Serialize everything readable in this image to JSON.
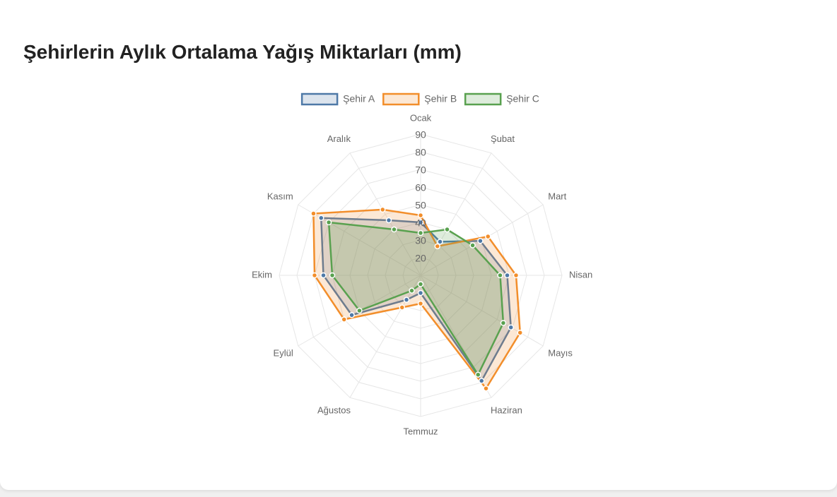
{
  "chart_data": {
    "type": "radar",
    "title": "Şehirlerin Aylık Ortalama Yağış Miktarları (mm)",
    "categories": [
      "Ocak",
      "Şubat",
      "Mart",
      "Nisan",
      "Mayıs",
      "Haziran",
      "Temmuz",
      "Ağustos",
      "Eylül",
      "Ekim",
      "Kasım",
      "Aralık"
    ],
    "series": [
      {
        "name": "Şehir A",
        "color": "#4e79a7",
        "values": [
          40,
          32,
          49,
          59,
          69,
          79,
          20,
          26,
          55,
          65,
          75,
          46
        ]
      },
      {
        "name": "Şehir B",
        "color": "#f28e2b",
        "values": [
          44,
          29,
          54,
          64,
          75,
          84,
          26,
          31,
          60,
          70,
          80,
          53
        ]
      },
      {
        "name": "Şehir C",
        "color": "#59a14f",
        "values": [
          34,
          40,
          44,
          55,
          64,
          75,
          15,
          20,
          50,
          60,
          70,
          40
        ]
      }
    ],
    "rlim": [
      10,
      90
    ],
    "rticks": [
      20,
      30,
      40,
      50,
      60,
      70,
      80,
      90
    ],
    "grid": true,
    "legend": "top"
  }
}
